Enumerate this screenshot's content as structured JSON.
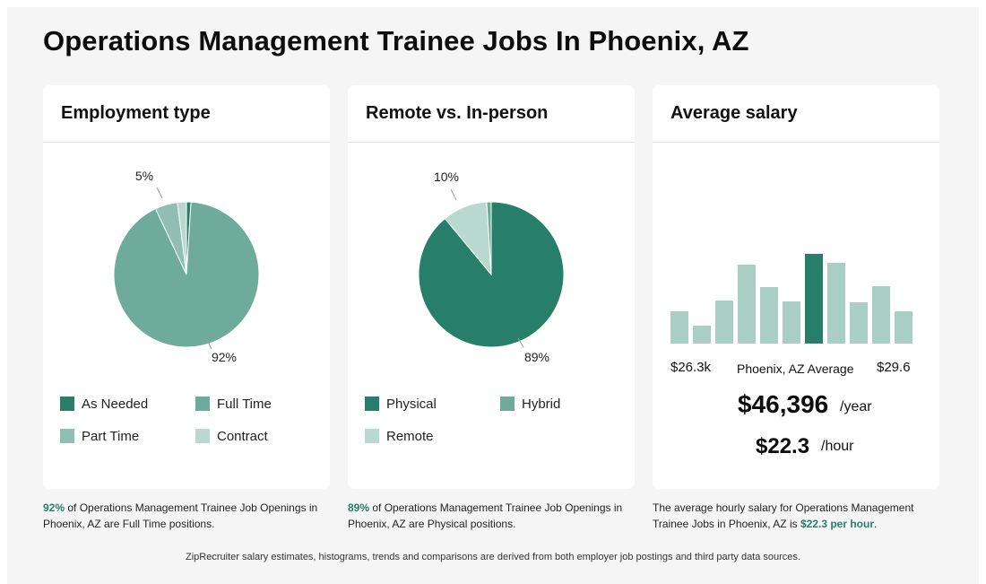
{
  "page": {
    "title": "Operations Management Trainee Jobs In Phoenix, AZ",
    "footer": "ZipRecruiter salary estimates, histograms, trends and comparisons are derived from both employer job postings and third party data sources."
  },
  "colors": {
    "dark_green": "#277f69",
    "mid_green": "#6fab9b",
    "light_green": "#8ebfb2",
    "pale_green": "#b9d9d0",
    "hist_bar": "#a9cec4",
    "hist_highlight": "#277f69"
  },
  "employment": {
    "title": "Employment type",
    "label_large": "92%",
    "label_small": "5%",
    "legend": [
      {
        "label": "As Needed",
        "color": "#277f69"
      },
      {
        "label": "Full Time",
        "color": "#6fab9b"
      },
      {
        "label": "Part Time",
        "color": "#8ebfb2"
      },
      {
        "label": "Contract",
        "color": "#b9d9d0"
      }
    ],
    "caption_pct": "92%",
    "caption_rest": " of Operations Management Trainee Job Openings in Phoenix, AZ are Full Time positions."
  },
  "remote": {
    "title": "Remote vs. In-person",
    "label_large": "89%",
    "label_small": "10%",
    "legend": [
      {
        "label": "Physical",
        "color": "#277f69"
      },
      {
        "label": "Hybrid",
        "color": "#6fab9b"
      },
      {
        "label": "Remote",
        "color": "#b9d9d0"
      }
    ],
    "caption_pct": "89%",
    "caption_rest": " of Operations Management Trainee Job Openings in Phoenix, AZ are Physical positions."
  },
  "salary": {
    "title": "Average salary",
    "min_label": "$26.3k",
    "mid_label": "Phoenix, AZ Average",
    "max_label": "$29.6",
    "yearly": "$46,396",
    "yearly_unit": "/year",
    "hourly": "$22.3",
    "hourly_unit": "/hour",
    "caption_pre": "The average hourly salary for Operations Management Trainee Jobs in Phoenix, AZ is ",
    "caption_value": "$22.3 per hour",
    "caption_post": "."
  },
  "chart_data": [
    {
      "type": "pie",
      "title": "Employment type",
      "slices": [
        {
          "name": "As Needed",
          "value": 1,
          "color": "#277f69"
        },
        {
          "name": "Full Time",
          "value": 92,
          "color": "#6fab9b"
        },
        {
          "name": "Part Time",
          "value": 5,
          "color": "#8ebfb2"
        },
        {
          "name": "Contract",
          "value": 2,
          "color": "#b9d9d0"
        }
      ]
    },
    {
      "type": "pie",
      "title": "Remote vs. In-person",
      "slices": [
        {
          "name": "Physical",
          "value": 89,
          "color": "#277f69"
        },
        {
          "name": "Remote",
          "value": 10,
          "color": "#b9d9d0"
        },
        {
          "name": "Hybrid",
          "value": 1,
          "color": "#6fab9b"
        }
      ]
    },
    {
      "type": "bar",
      "title": "Average salary",
      "x_range": [
        "$26.3k",
        "$29.6"
      ],
      "values": [
        36,
        20,
        48,
        88,
        63,
        47,
        100,
        90,
        46,
        64,
        36
      ],
      "highlight_index": 6
    }
  ]
}
